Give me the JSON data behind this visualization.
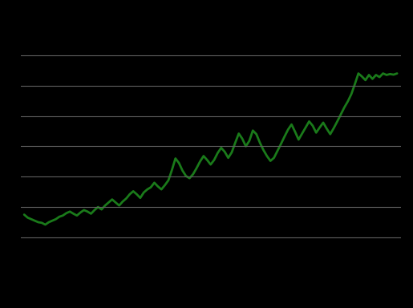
{
  "background_color": "#000000",
  "line_color": "#1a7a1a",
  "line_width": 2.0,
  "grid_color": "#606060",
  "grid_linewidth": 0.8,
  "ylim": [
    1.5,
    8.5
  ],
  "xlim": [
    -1,
    107
  ],
  "yticks": [
    2.0,
    3.0,
    4.0,
    5.0,
    6.0,
    7.0,
    8.0
  ],
  "values": [
    2.75,
    2.65,
    2.6,
    2.55,
    2.5,
    2.48,
    2.42,
    2.5,
    2.55,
    2.6,
    2.68,
    2.72,
    2.8,
    2.85,
    2.78,
    2.72,
    2.82,
    2.9,
    2.85,
    2.78,
    2.9,
    3.0,
    2.92,
    3.05,
    3.15,
    3.25,
    3.15,
    3.05,
    3.18,
    3.28,
    3.42,
    3.52,
    3.42,
    3.3,
    3.48,
    3.58,
    3.65,
    3.8,
    3.68,
    3.58,
    3.72,
    3.88,
    4.22,
    4.6,
    4.45,
    4.2,
    4.02,
    3.95,
    4.08,
    4.28,
    4.5,
    4.68,
    4.55,
    4.4,
    4.55,
    4.78,
    4.95,
    4.82,
    4.62,
    4.8,
    5.12,
    5.42,
    5.25,
    5.0,
    5.18,
    5.52,
    5.4,
    5.12,
    4.88,
    4.68,
    4.52,
    4.62,
    4.85,
    5.08,
    5.32,
    5.55,
    5.72,
    5.48,
    5.22,
    5.42,
    5.62,
    5.82,
    5.68,
    5.45,
    5.62,
    5.78,
    5.58,
    5.4,
    5.6,
    5.82,
    6.05,
    6.28,
    6.48,
    6.72,
    7.05,
    7.4,
    7.3,
    7.18,
    7.35,
    7.22,
    7.35,
    7.28,
    7.4,
    7.35,
    7.38,
    7.36,
    7.4
  ]
}
